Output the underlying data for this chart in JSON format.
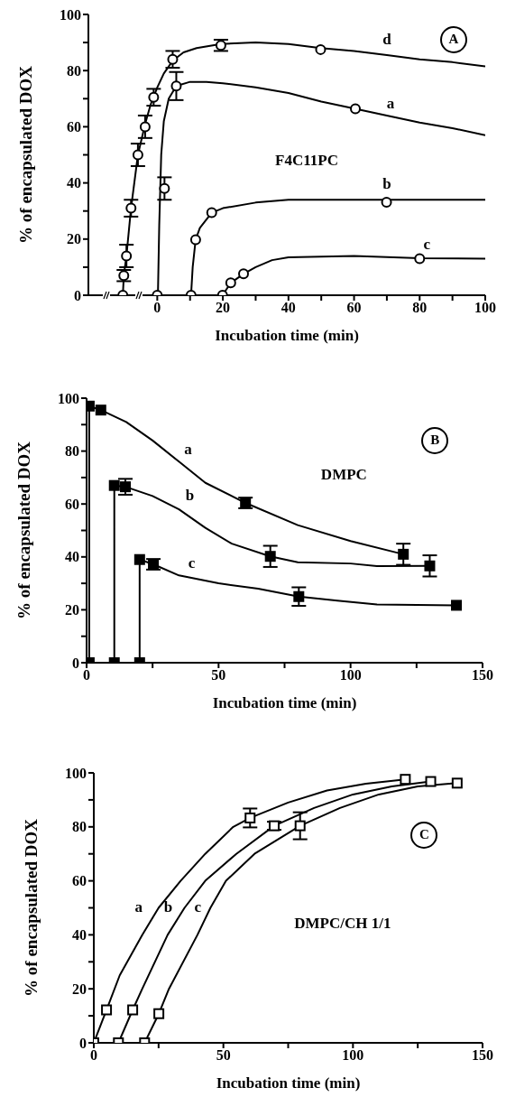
{
  "chart_data": [
    {
      "type": "line",
      "xlabel": "Incubation time (min)",
      "ylabel": "% of encapsulated DOX",
      "annotations": [
        "A",
        "F4C11PC"
      ],
      "xlim": [
        -21,
        100
      ],
      "ylim": [
        0,
        100
      ],
      "xticks": [
        0,
        {
          "value": 10,
          "label": null
        },
        20,
        {
          "value": 30,
          "label": null
        },
        40,
        {
          "value": 50,
          "label": null
        },
        60,
        {
          "value": 70,
          "label": null
        },
        80,
        {
          "value": 90,
          "label": null
        },
        100
      ],
      "yticks": [
        0,
        {
          "value": 10,
          "label": null
        },
        20,
        {
          "value": 30,
          "label": null
        },
        40,
        {
          "value": 50,
          "label": null
        },
        60,
        {
          "value": 70,
          "label": null
        },
        80,
        {
          "value": 90,
          "label": null
        },
        100
      ],
      "marker": "circle",
      "series": [
        {
          "type": "scatter",
          "color": "#000000",
          "x": [
            -10.5,
            -10.2,
            -9.4,
            -8,
            -5.9,
            -3.7,
            -1.1,
            4.7,
            19.4,
            49.8
          ],
          "values": [
            0,
            7,
            14,
            31,
            50,
            60,
            70.5,
            84,
            89,
            87.5
          ],
          "errors": [
            null,
            2,
            4,
            3,
            4,
            4,
            3,
            3,
            2,
            null
          ]
        },
        {
          "type": "scatter",
          "color": "#000000",
          "x": [
            0,
            2.2,
            5.8,
            60.4
          ],
          "values": [
            0,
            38,
            74.5,
            66.4
          ],
          "errors": [
            null,
            4,
            5,
            null
          ]
        },
        {
          "type": "scatter",
          "color": "#000000",
          "x": [
            10.3,
            11.7,
            16.6,
            69.9
          ],
          "values": [
            0,
            19.8,
            29.4,
            33.1
          ],
          "errors": [
            null,
            null,
            null,
            null
          ]
        },
        {
          "type": "scatter",
          "color": "#000000",
          "x": [
            19.9,
            22.4,
            26.3,
            80
          ],
          "values": [
            0,
            4.4,
            7.6,
            13
          ],
          "errors": [
            null,
            null,
            null,
            null
          ]
        },
        {
          "type": "line",
          "marker": "none",
          "name": "d",
          "color": "#000000",
          "x": [
            -10.5,
            -10.2,
            -9.4,
            -8,
            -5.9,
            -3.7,
            -2,
            0,
            2,
            4.7,
            8,
            12,
            19.4,
            30,
            40,
            49.8,
            60,
            70,
            80,
            90,
            100
          ],
          "values": [
            0,
            7,
            14,
            31,
            50,
            61,
            68,
            74,
            79,
            83.5,
            86.5,
            88,
            89.5,
            90,
            89.5,
            88,
            87,
            85.5,
            84,
            83,
            81.5
          ]
        },
        {
          "type": "line",
          "marker": "none",
          "name": "a",
          "color": "#000000",
          "x": [
            0.2,
            0.6,
            1.2,
            2,
            3.5,
            5.8,
            10,
            15,
            20,
            30,
            40,
            50,
            60.4,
            70,
            80,
            90,
            100
          ],
          "values": [
            0,
            25,
            50,
            62,
            70,
            74.5,
            76,
            76,
            75.5,
            74,
            72,
            69,
            66.4,
            64,
            61.5,
            59.5,
            57
          ]
        },
        {
          "type": "line",
          "marker": "none",
          "name": "b",
          "color": "#000000",
          "x": [
            10.3,
            10.8,
            11.7,
            13,
            16.6,
            20,
            30,
            40,
            70,
            100
          ],
          "values": [
            0,
            10,
            19.8,
            24,
            29.4,
            31,
            33,
            34,
            34,
            34
          ]
        },
        {
          "type": "line",
          "marker": "none",
          "name": "c",
          "color": "#000000",
          "x": [
            -21,
            19.9,
            22.4,
            26.3,
            30,
            35,
            40,
            60,
            80,
            100
          ],
          "values": [
            0,
            0,
            4.4,
            7.6,
            10,
            12.5,
            13.5,
            14,
            13.2,
            13
          ]
        }
      ]
    },
    {
      "type": "line",
      "xlabel": "Incubation time (min)",
      "ylabel": "% of encapsulated DOX",
      "annotations": [
        "B",
        "DMPC"
      ],
      "xlim": [
        0,
        150
      ],
      "ylim": [
        0,
        100
      ],
      "xticks": [
        0,
        {
          "value": 25,
          "label": null
        },
        50,
        {
          "value": 75,
          "label": null
        },
        100,
        {
          "value": 125,
          "label": null
        },
        150
      ],
      "yticks": [
        0,
        {
          "value": 10,
          "label": null
        },
        20,
        {
          "value": 30,
          "label": null
        },
        40,
        {
          "value": 50,
          "label": null
        },
        60,
        {
          "value": 70,
          "label": null
        },
        80,
        {
          "value": 90,
          "label": null
        },
        100
      ],
      "marker": "square",
      "series": [
        {
          "type": "scatter",
          "color": "#000000",
          "x": [
            1,
            1,
            5.4,
            60.2,
            120
          ],
          "values": [
            0,
            97,
            95.5,
            60.4,
            41
          ],
          "errors": [
            null,
            null,
            null,
            2,
            4
          ]
        },
        {
          "type": "scatter",
          "color": "#000000",
          "x": [
            10.5,
            10.5,
            14.7,
            69.6,
            130
          ],
          "values": [
            0,
            67,
            66.5,
            40.2,
            36.6
          ],
          "errors": [
            null,
            null,
            3,
            4,
            4
          ]
        },
        {
          "type": "scatter",
          "color": "#000000",
          "x": [
            20.1,
            20.1,
            25.3,
            80.4,
            140.1
          ],
          "values": [
            0,
            39,
            37.2,
            25,
            21.7
          ],
          "errors": [
            null,
            null,
            2,
            3.5,
            null
          ]
        },
        {
          "type": "line",
          "marker": "none",
          "name": "a",
          "color": "#000000",
          "x": [
            1,
            1,
            5.4,
            15,
            25,
            35,
            45,
            60.2,
            80,
            100,
            120
          ],
          "values": [
            0,
            97,
            95.5,
            91,
            84,
            76,
            68,
            60.4,
            52,
            46,
            41
          ]
        },
        {
          "type": "line",
          "marker": "none",
          "name": "b",
          "color": "#000000",
          "x": [
            10.5,
            10.5,
            14.7,
            25,
            35,
            45,
            55,
            69.6,
            80,
            100,
            110,
            130
          ],
          "values": [
            0,
            67,
            66.5,
            63,
            58,
            51,
            45,
            40.2,
            38,
            37.5,
            36.5,
            36.6
          ]
        },
        {
          "type": "line",
          "marker": "none",
          "name": "c",
          "color": "#000000",
          "x": [
            20.1,
            20.1,
            25.3,
            35,
            50,
            65,
            80.4,
            95,
            110,
            140.1
          ],
          "values": [
            0,
            39,
            37.2,
            33,
            30,
            28,
            25,
            23.5,
            22,
            21.7
          ]
        }
      ]
    },
    {
      "type": "line",
      "xlabel": "Incubation time (min)",
      "ylabel": "% of encapsulated DOX",
      "annotations": [
        "C",
        "DMPC/CH 1/1"
      ],
      "xlim": [
        0,
        150
      ],
      "ylim": [
        0,
        100
      ],
      "xticks": [
        0,
        {
          "value": 25,
          "label": null
        },
        50,
        {
          "value": 75,
          "label": null
        },
        100,
        {
          "value": 125,
          "label": null
        },
        150
      ],
      "yticks": [
        0,
        {
          "value": 10,
          "label": null
        },
        20,
        {
          "value": 30,
          "label": null
        },
        40,
        {
          "value": 50,
          "label": null
        },
        60,
        {
          "value": 70,
          "label": null
        },
        80,
        {
          "value": 90,
          "label": null
        },
        100
      ],
      "marker": "square",
      "series": [
        {
          "type": "scatter",
          "color": "#000000",
          "x": [
            0,
            4.9,
            60.3,
            120.2
          ],
          "values": [
            0,
            12.2,
            83.3,
            97.6
          ],
          "errors": [
            null,
            null,
            3.5,
            null
          ]
        },
        {
          "type": "scatter",
          "color": "#000000",
          "x": [
            9.5,
            15,
            69.6,
            130
          ],
          "values": [
            0,
            12.2,
            80.4,
            96.8
          ],
          "errors": [
            null,
            null,
            1.5,
            null
          ]
        },
        {
          "type": "scatter",
          "color": "#000000",
          "x": [
            19.6,
            25.1,
            79.6,
            140.2
          ],
          "values": [
            0,
            10.8,
            80.4,
            96.2
          ],
          "errors": [
            null,
            null,
            5,
            null
          ]
        },
        {
          "type": "line",
          "marker": "none",
          "name": "a",
          "color": "#000000",
          "x": [
            0,
            4.9,
            10,
            18.7,
            25,
            33.5,
            43,
            53.8,
            60.3,
            75,
            90,
            105,
            120.2
          ],
          "values": [
            0,
            12.2,
            25,
            40,
            50,
            60,
            70,
            80,
            83.3,
            89,
            93.5,
            96,
            97.6
          ]
        },
        {
          "type": "line",
          "marker": "none",
          "name": "b",
          "color": "#000000",
          "x": [
            9.5,
            15,
            18.7,
            28.5,
            35,
            43,
            55,
            69.6,
            85,
            100,
            115,
            130
          ],
          "values": [
            0,
            12.2,
            20,
            40,
            50,
            60,
            70,
            80.4,
            87,
            92,
            95,
            96.8
          ]
        },
        {
          "type": "line",
          "marker": "none",
          "name": "c",
          "color": "#000000",
          "x": [
            19.6,
            25.1,
            29,
            40,
            45,
            51,
            62,
            79.6,
            95,
            110,
            125,
            140.2
          ],
          "values": [
            0,
            10.8,
            20,
            40,
            50,
            60,
            70,
            80.4,
            87,
            92,
            95,
            96.2
          ]
        }
      ]
    }
  ]
}
